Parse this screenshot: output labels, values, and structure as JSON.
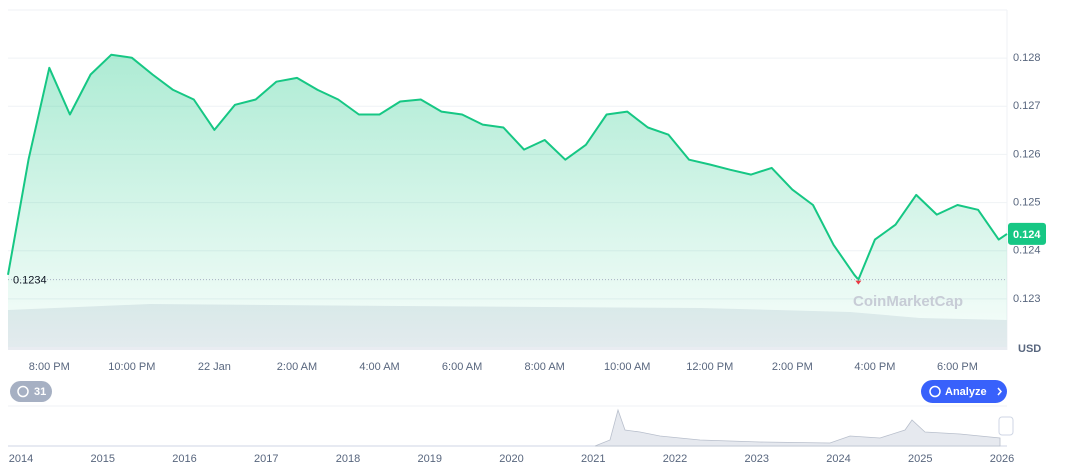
{
  "chart_data": {
    "type": "line",
    "x": [
      19,
      19.5,
      20,
      20.5,
      21,
      21.5,
      22,
      22.5,
      23,
      23.5,
      24,
      24.5,
      25,
      25.5,
      26,
      26.5,
      27,
      27.5,
      28,
      28.5,
      29,
      29.5,
      30,
      30.5,
      31,
      31.5,
      32,
      32.5,
      33,
      33.5,
      34,
      34.5,
      35,
      35.5,
      36,
      36.5,
      37,
      37.5,
      38,
      38.5,
      39,
      39.5,
      39.6,
      40,
      40.5,
      41,
      41.5,
      42,
      42.5,
      43,
      43.2
    ],
    "series": [
      {
        "name": "Price",
        "color": "#16c784",
        "values": [
          0.1235,
          0.1259,
          0.1278,
          0.12683,
          0.12766,
          0.12807,
          0.12801,
          0.12766,
          0.12734,
          0.12714,
          0.12651,
          0.12703,
          0.12714,
          0.12751,
          0.12759,
          0.12734,
          0.12714,
          0.12683,
          0.12683,
          0.1271,
          0.12714,
          0.12689,
          0.12683,
          0.12662,
          0.12656,
          0.1261,
          0.1263,
          0.12589,
          0.1262,
          0.12683,
          0.12689,
          0.12656,
          0.12641,
          0.12589,
          0.12579,
          0.12568,
          0.12558,
          0.12572,
          0.12527,
          0.12495,
          0.12412,
          0.1235,
          0.1234,
          0.12423,
          0.12454,
          0.12516,
          0.12475,
          0.12495,
          0.12485,
          0.12423,
          0.12435
        ]
      }
    ],
    "xlim": [
      19,
      43.2
    ],
    "xticks": [
      {
        "value": 20,
        "label": "8:00 PM"
      },
      {
        "value": 22,
        "label": "10:00 PM"
      },
      {
        "value": 24,
        "label": "22 Jan"
      },
      {
        "value": 26,
        "label": "2:00 AM"
      },
      {
        "value": 28,
        "label": "4:00 AM"
      },
      {
        "value": 30,
        "label": "6:00 AM"
      },
      {
        "value": 32,
        "label": "8:00 AM"
      },
      {
        "value": 34,
        "label": "10:00 AM"
      },
      {
        "value": 36,
        "label": "12:00 PM"
      },
      {
        "value": 38,
        "label": "2:00 PM"
      },
      {
        "value": 40,
        "label": "4:00 PM"
      },
      {
        "value": 42,
        "label": "6:00 PM"
      }
    ],
    "ylim": [
      0.122,
      0.129
    ],
    "yticks": [
      0.123,
      0.124,
      0.125,
      0.126,
      0.127,
      0.128
    ],
    "grid": true,
    "open_price": 0.1234,
    "price_badge": "0.124",
    "currency": "USD",
    "watermark": "CoinMarketCap"
  },
  "controls": {
    "range_badge": "31",
    "analyze_button": "Analyze"
  },
  "navigator": {
    "years": [
      "2014",
      "2015",
      "2016",
      "2017",
      "2018",
      "2019",
      "2020",
      "2021",
      "2022",
      "2023",
      "2024",
      "2025",
      "2026"
    ]
  }
}
